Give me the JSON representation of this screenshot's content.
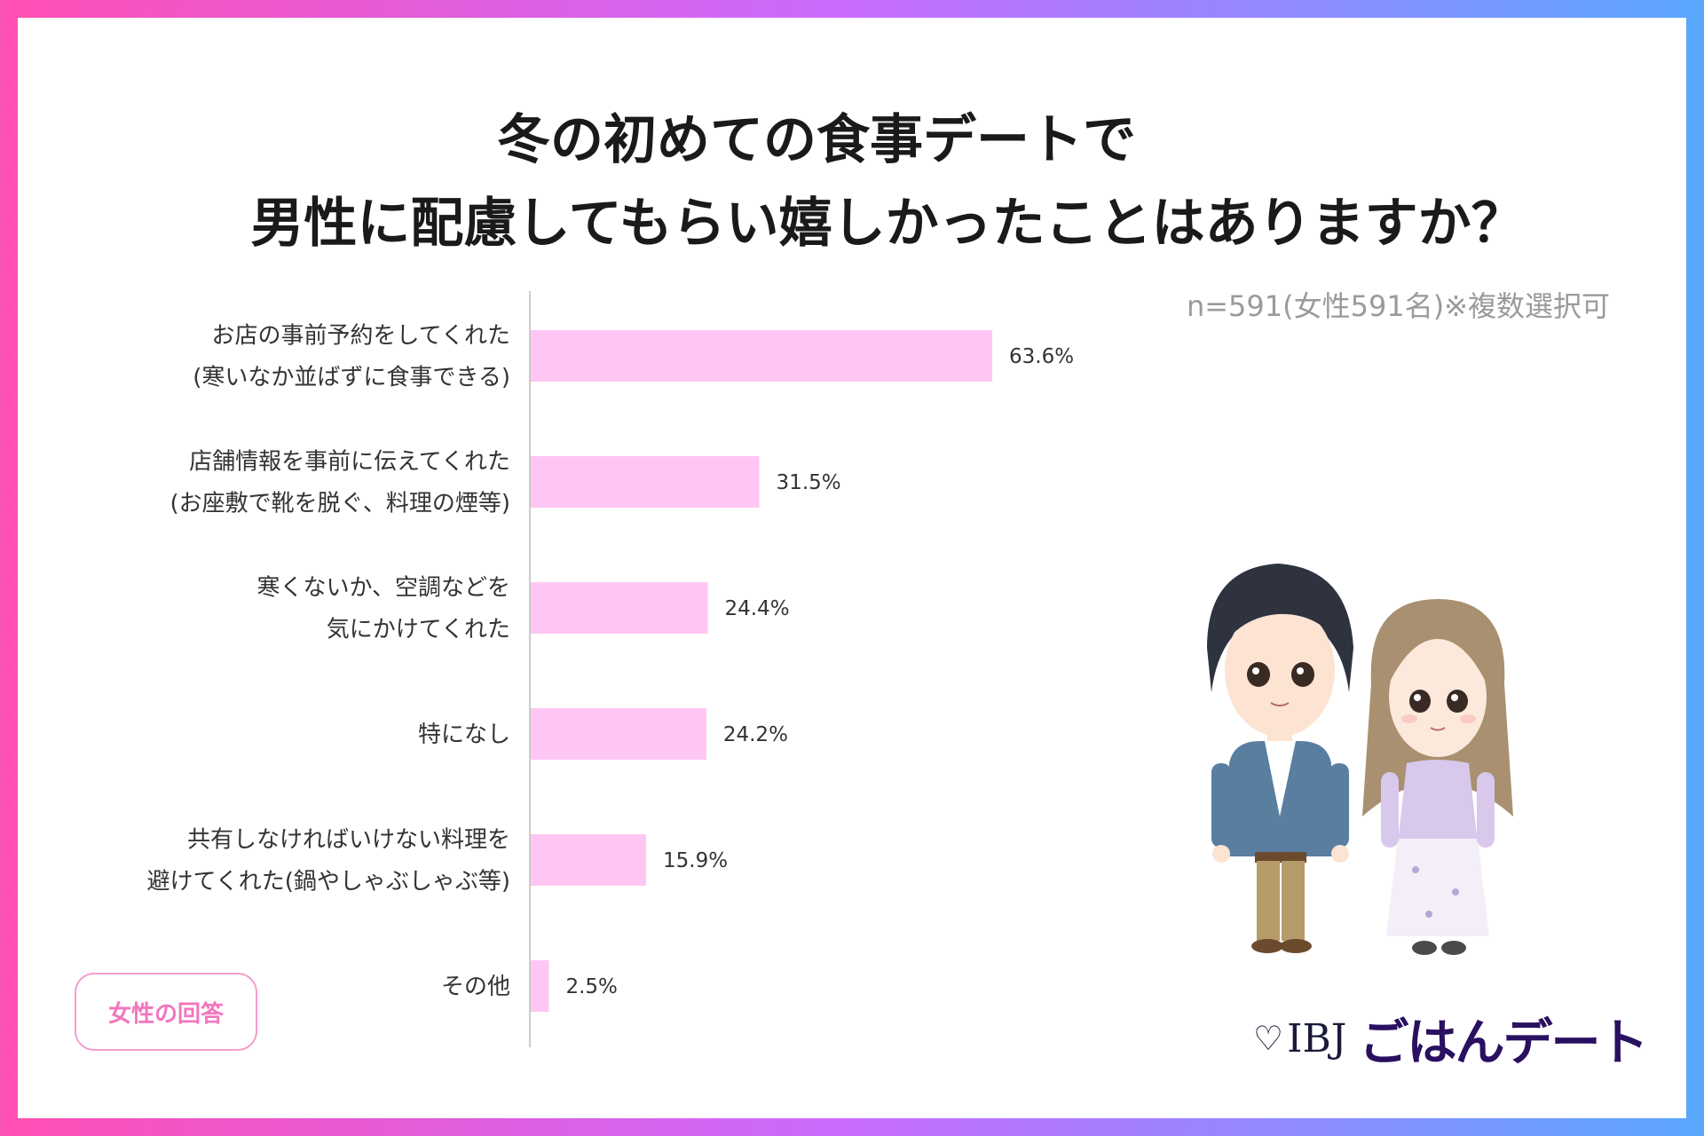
{
  "title_line1": "冬の初めての食事デートで",
  "title_line2": "男性に配慮してもらい嬉しかったことはありますか？",
  "sample_note": "n=591(女性591名)※複数選択可",
  "badge": "女性の回答",
  "logo": {
    "ibj": "IBJ",
    "brand": "ごはんデート"
  },
  "colors": {
    "bar": "#ffc6f4",
    "axis": "#cccccc",
    "text": "#333333"
  },
  "chart_data": {
    "type": "bar",
    "orientation": "horizontal",
    "title": "冬の初めての食事デートで 男性に配慮してもらい嬉しかったことはありますか？",
    "unit": "%",
    "categories": [
      [
        "お店の事前予約をしてくれた",
        "(寒いなか並ばずに食事できる)"
      ],
      [
        "店舗情報を事前に伝えてくれた",
        "(お座敷で靴を脱ぐ、料理の煙等)"
      ],
      [
        "寒くないか、空調などを",
        "気にかけてくれた"
      ],
      [
        "特になし"
      ],
      [
        "共有しなければいけない料理を",
        "避けてくれた(鍋やしゃぶしゃぶ等)"
      ],
      [
        "その他"
      ]
    ],
    "values": [
      63.6,
      31.5,
      24.4,
      24.2,
      15.9,
      2.5
    ],
    "value_labels": [
      "63.6%",
      "31.5%",
      "24.4%",
      "24.2%",
      "15.9%",
      "2.5%"
    ],
    "xlim": [
      0,
      100
    ],
    "grid": false,
    "legend": "none"
  }
}
